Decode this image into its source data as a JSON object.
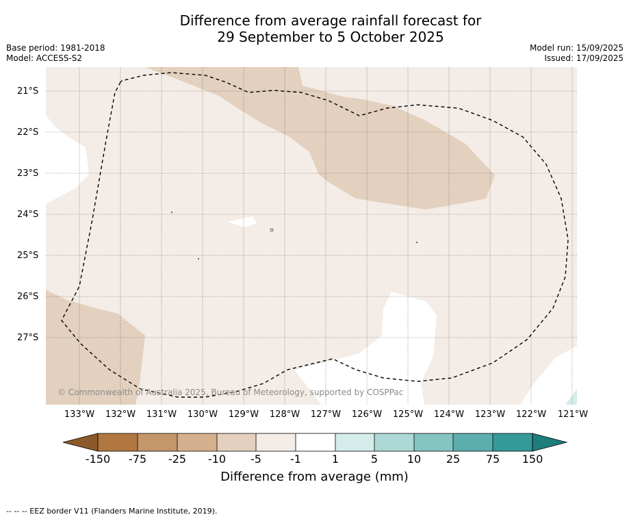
{
  "title_line1": "Difference from average rainfall forecast for",
  "title_line2": "29 September to 5 October 2025",
  "base_period": "Base period: 1981-2018",
  "model": "Model: ACCESS-S2",
  "model_run": "Model run: 15/09/2025",
  "issued": "Issued: 17/09/2025",
  "copyright": "© Commonwealth of Australia 2025, Bureau of Meteorology, supported by COSPPac",
  "lat_labels": [
    "21°S",
    "22°S",
    "23°S",
    "24°S",
    "25°S",
    "26°S",
    "27°S"
  ],
  "lon_labels": [
    "133°W",
    "132°W",
    "131°W",
    "130°W",
    "129°W",
    "128°W",
    "127°W",
    "126°W",
    "125°W",
    "124°W",
    "123°W",
    "122°W",
    "121°W"
  ],
  "colorbar": {
    "labels": [
      "-150",
      "-75",
      "-25",
      "-10",
      "-5",
      "-1",
      "1",
      "5",
      "10",
      "25",
      "75",
      "150"
    ],
    "colors": [
      "#8c5a2a",
      "#b07840",
      "#c4966a",
      "#d4b08e",
      "#e3d0be",
      "#f4ece6",
      "#ffffff",
      "#d4ecea",
      "#acd8d6",
      "#84c4c2",
      "#5caeae",
      "#349a98",
      "#1e7e7c"
    ],
    "title": "Difference from average (mm)"
  },
  "footnote": "-- -- -- EEZ border V11 (Flanders Marine Institute, 2019).",
  "colors": {
    "light_brown": "#f4ece6",
    "mid_brown": "#e3d0be",
    "white": "#ffffff",
    "light_teal": "#d4ecea"
  }
}
